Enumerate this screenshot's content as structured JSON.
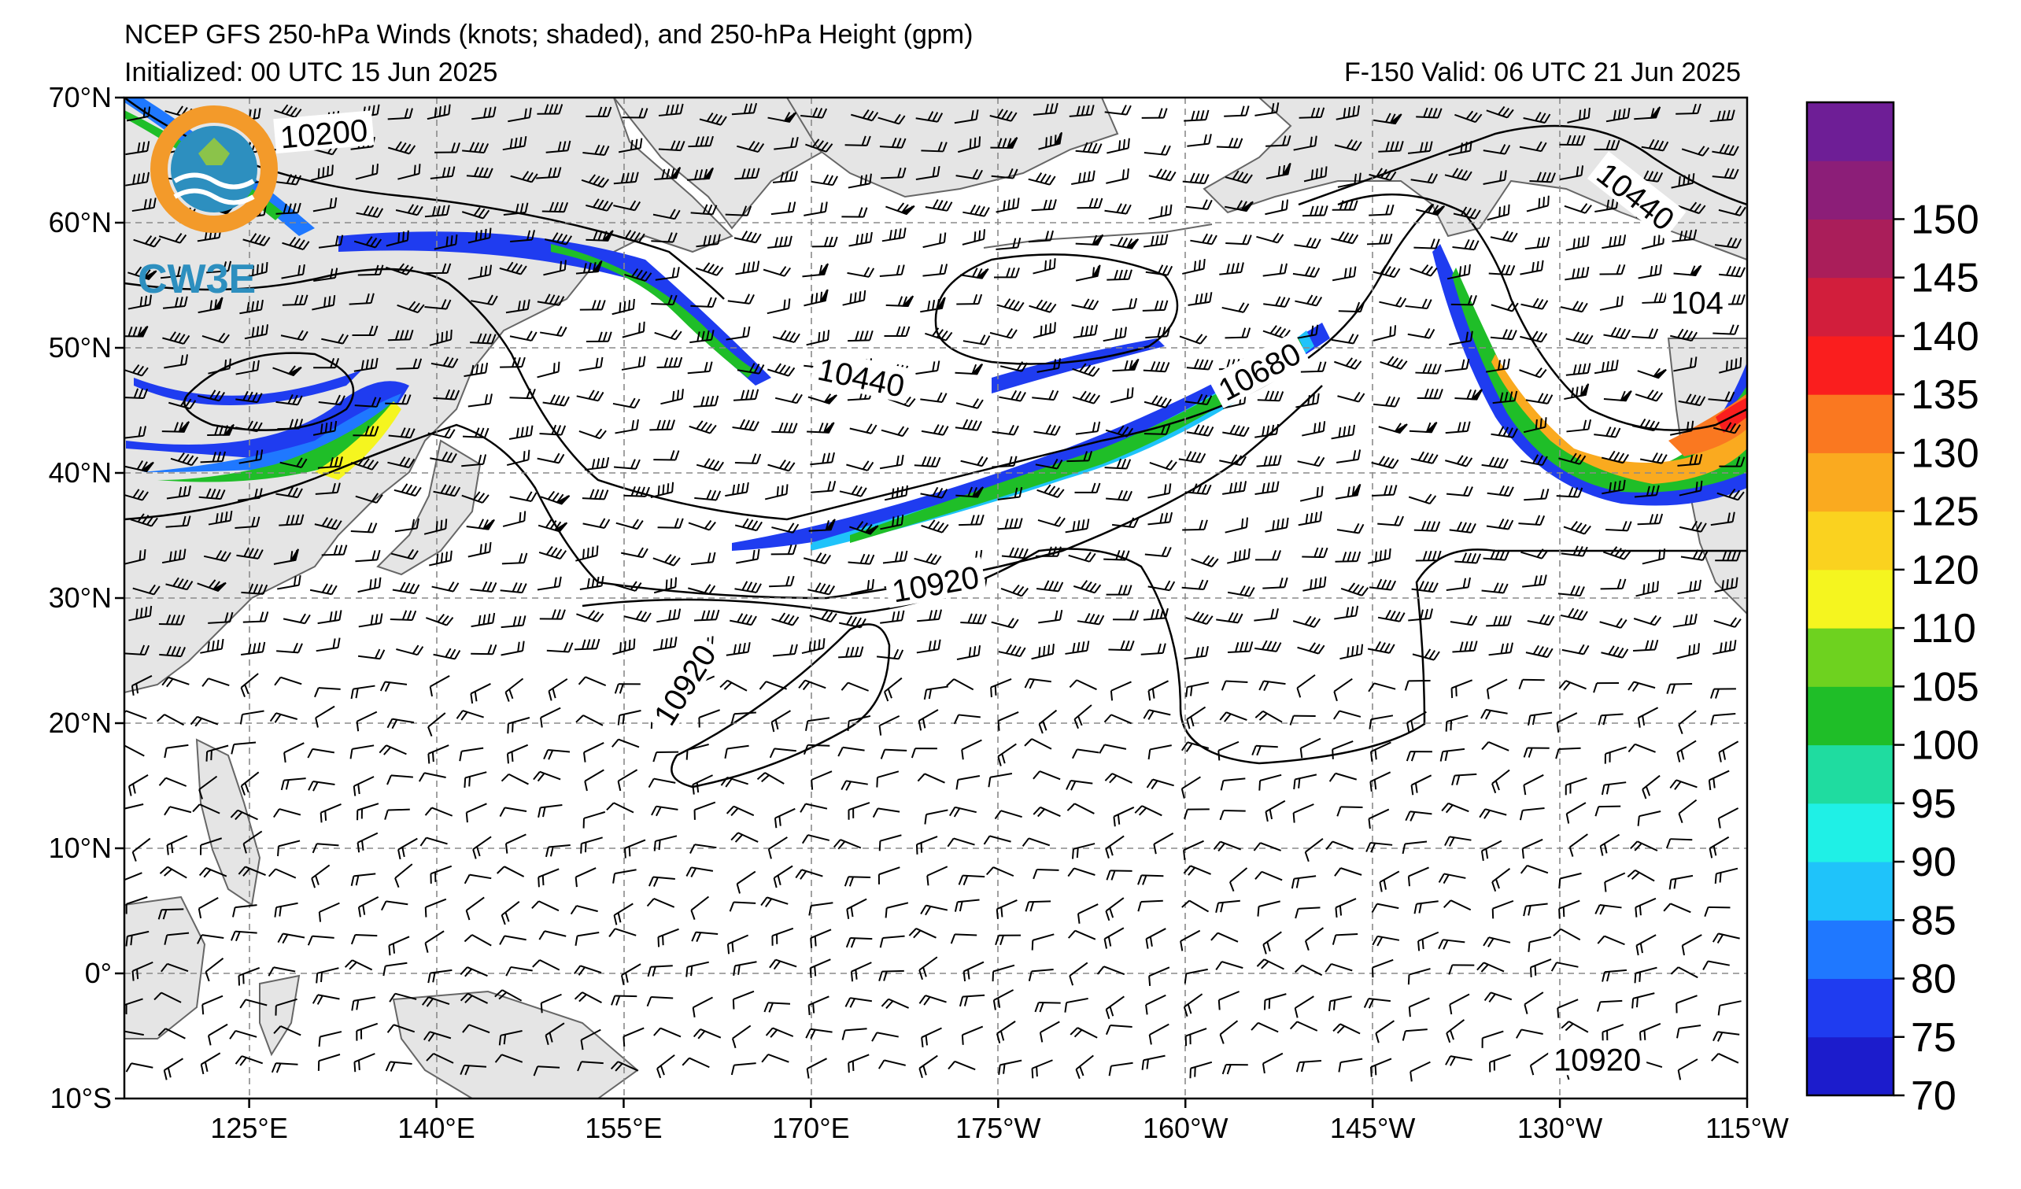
{
  "header": {
    "title": "NCEP GFS 250-hPa Winds (knots; shaded), and 250-hPa Height (gpm)",
    "initialized": "Initialized: 00 UTC 15 Jun 2025",
    "valid": "F-150  Valid: 06 UTC 21 Jun 2025"
  },
  "logo": {
    "text": "CW3E"
  },
  "map": {
    "lon_range": [
      115,
      245
    ],
    "lat_range": [
      -10,
      70
    ],
    "lat_ticks": [
      {
        "value": 70,
        "label": "70°N"
      },
      {
        "value": 60,
        "label": "60°N"
      },
      {
        "value": 50,
        "label": "50°N"
      },
      {
        "value": 40,
        "label": "40°N"
      },
      {
        "value": 30,
        "label": "30°N"
      },
      {
        "value": 20,
        "label": "20°N"
      },
      {
        "value": 10,
        "label": "10°N"
      },
      {
        "value": 0,
        "label": "0°"
      },
      {
        "value": -10,
        "label": "10°S"
      }
    ],
    "lon_ticks": [
      {
        "value": 125,
        "label": "125°E"
      },
      {
        "value": 140,
        "label": "140°E"
      },
      {
        "value": 155,
        "label": "155°E"
      },
      {
        "value": 170,
        "label": "170°E"
      },
      {
        "value": 185,
        "label": "175°W"
      },
      {
        "value": 200,
        "label": "160°W"
      },
      {
        "value": 215,
        "label": "145°W"
      },
      {
        "value": 230,
        "label": "130°W"
      },
      {
        "value": 245,
        "label": "115°W"
      }
    ],
    "contour_labels": [
      {
        "text": "10200",
        "lon": 131,
        "lat": 67,
        "angle": -5
      },
      {
        "text": "10440",
        "lon": 236,
        "lat": 62,
        "angle": 38
      },
      {
        "text": "104",
        "lon": 241,
        "lat": 53.5,
        "angle": 0
      },
      {
        "text": "10440",
        "lon": 174,
        "lat": 47.5,
        "angle": 12
      },
      {
        "text": "10680",
        "lon": 206,
        "lat": 48,
        "angle": -28
      },
      {
        "text": "10920",
        "lon": 180,
        "lat": 31,
        "angle": -10
      },
      {
        "text": "10920",
        "lon": 160,
        "lat": 23,
        "angle": -58
      },
      {
        "text": "10920",
        "lon": 233,
        "lat": -7,
        "angle": 0
      }
    ]
  },
  "colorbar": {
    "levels": [
      70,
      75,
      80,
      85,
      90,
      95,
      100,
      105,
      110,
      120,
      125,
      130,
      135,
      140,
      145,
      150
    ],
    "colors": [
      "#1c1ccc",
      "#1f3cf0",
      "#1f78ff",
      "#1fc3fa",
      "#1ff0e6",
      "#1fdca0",
      "#1fbe28",
      "#6ed21f",
      "#f5f51f",
      "#fad21f",
      "#faaa1f",
      "#fa7820",
      "#fa1e1e",
      "#d21e3c",
      "#aa1e5a",
      "#8c1e78",
      "#6e1e96"
    ],
    "tick_labels": [
      "70",
      "75",
      "80",
      "85",
      "90",
      "95",
      "100",
      "105",
      "110",
      "120",
      "125",
      "130",
      "135",
      "140",
      "145",
      "150"
    ]
  },
  "colors": {
    "land": "#e5e5e5",
    "coast": "#666666",
    "grid": "#8a8a8a"
  }
}
